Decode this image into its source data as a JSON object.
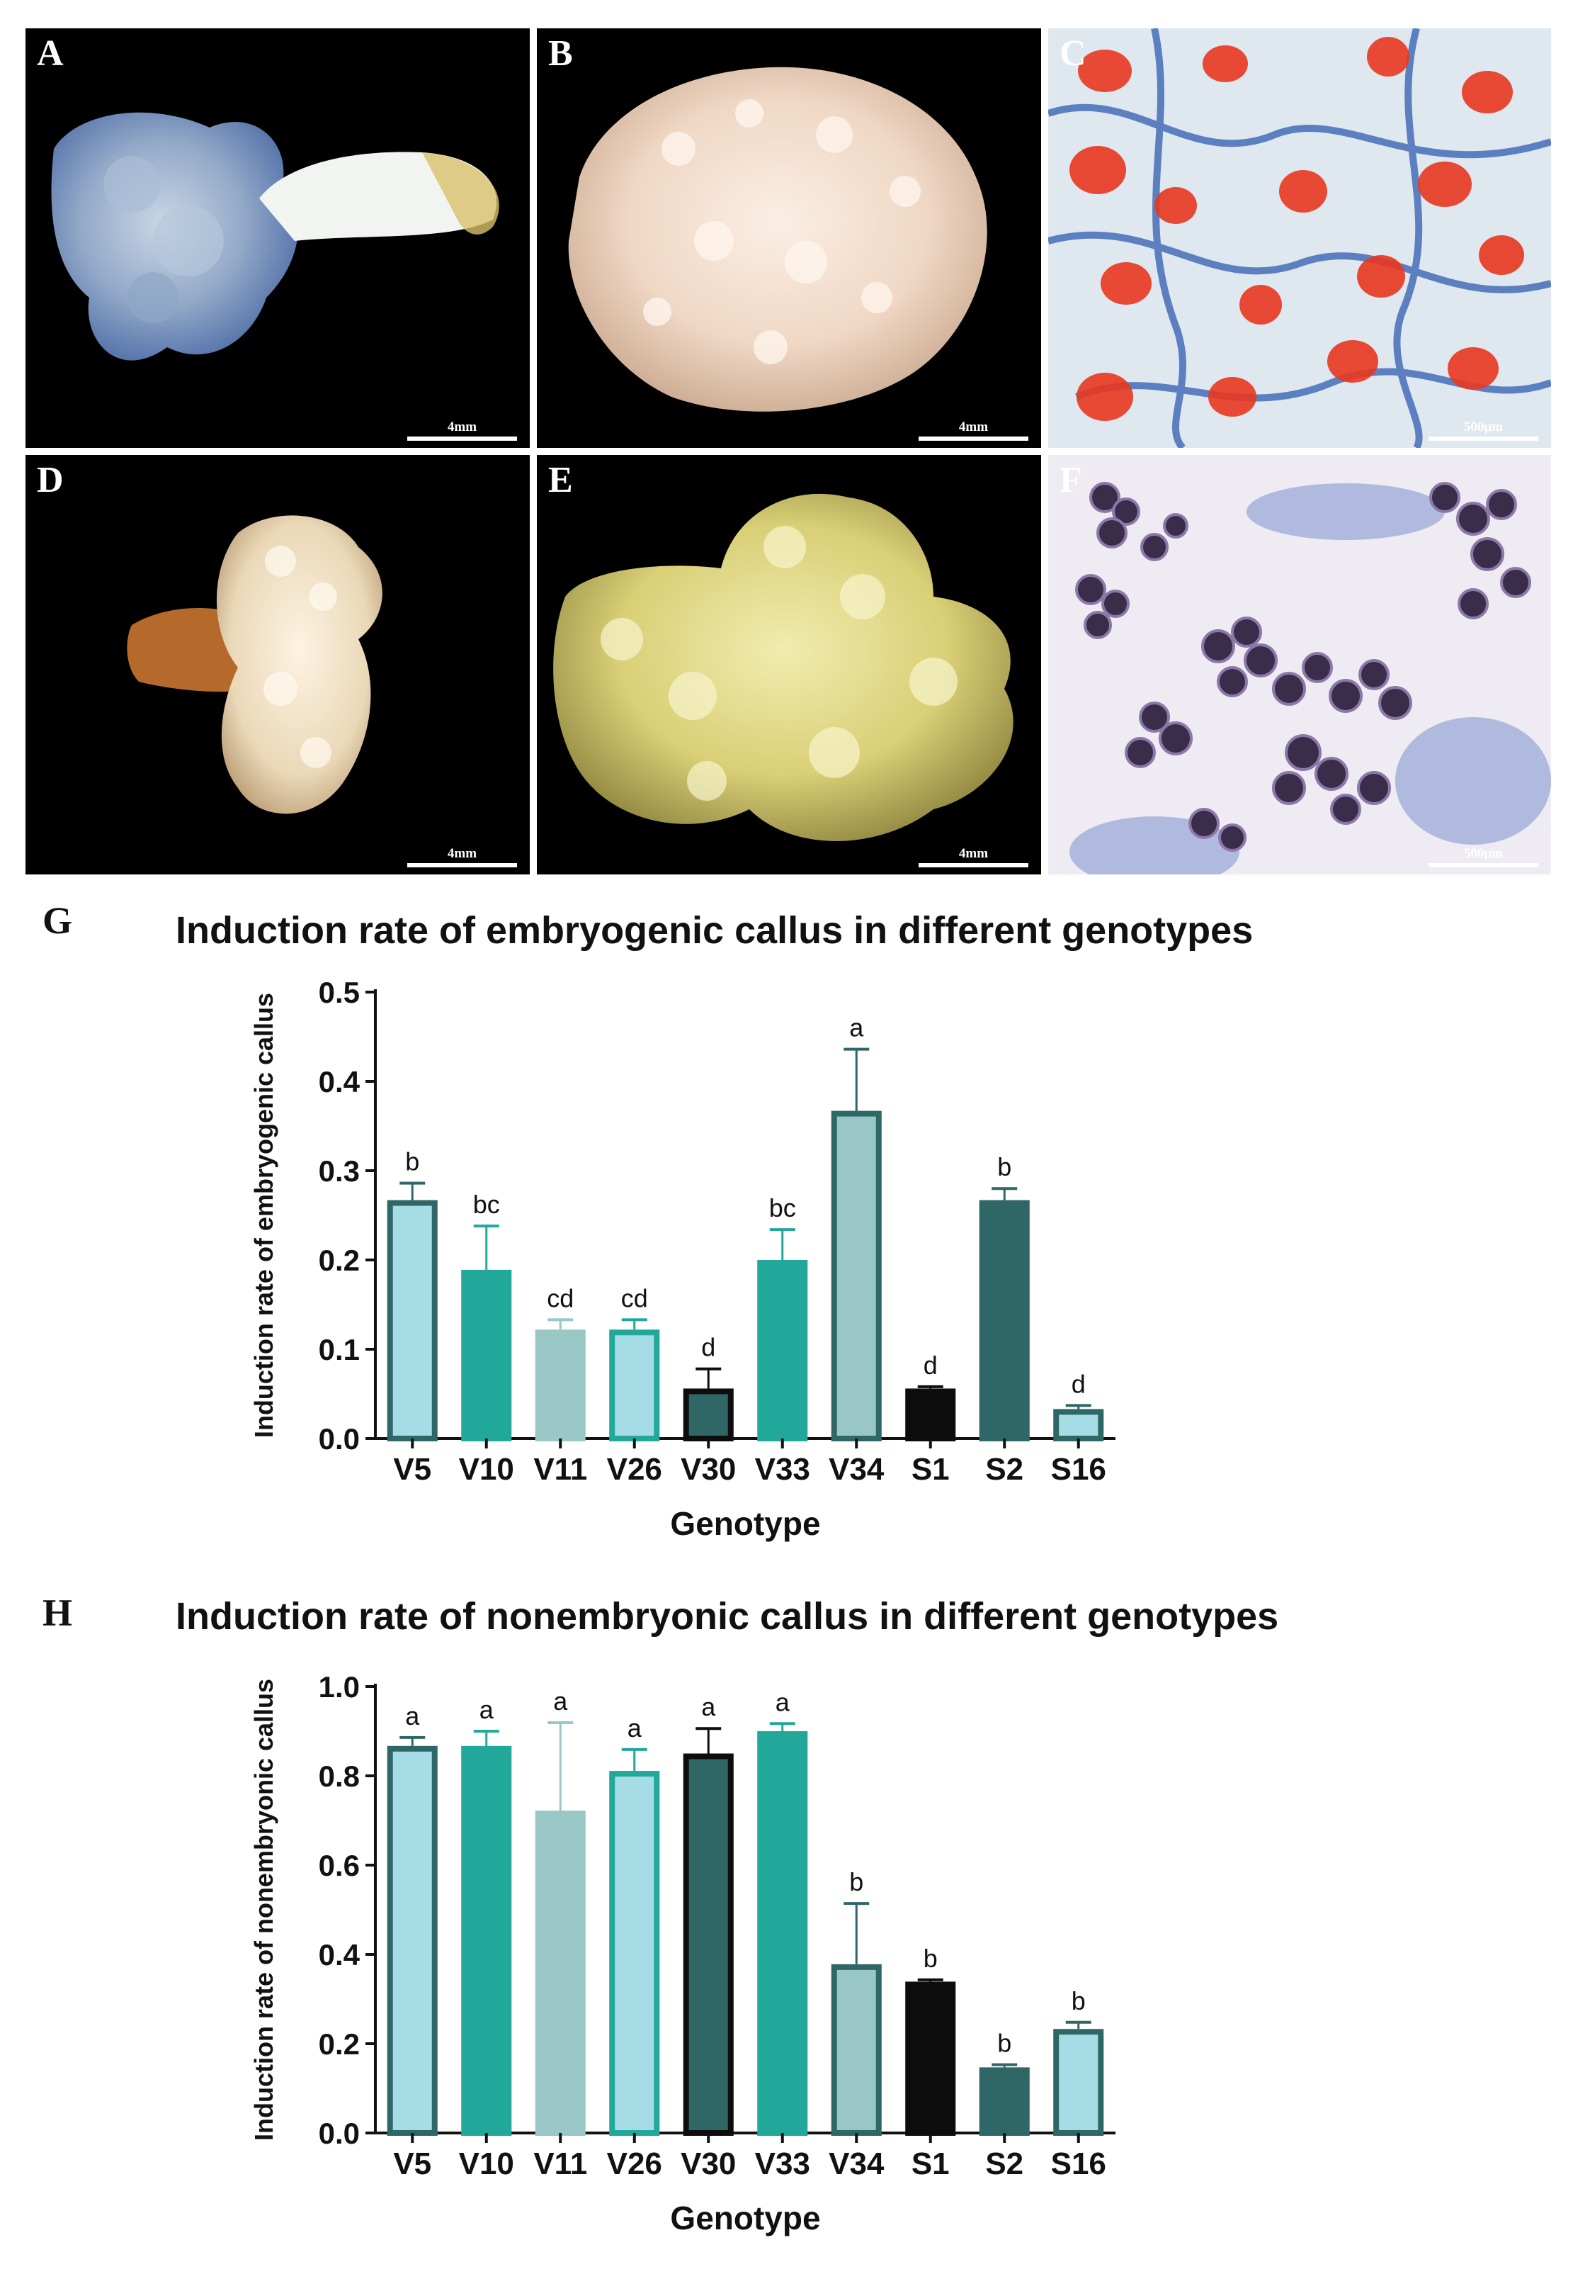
{
  "panels": [
    {
      "letter": "A",
      "scale": "4mm"
    },
    {
      "letter": "B",
      "scale": "4mm"
    },
    {
      "letter": "C",
      "scale": "500μm"
    },
    {
      "letter": "D",
      "scale": "4mm"
    },
    {
      "letter": "E",
      "scale": "4mm"
    },
    {
      "letter": "F",
      "scale": "500μm"
    }
  ],
  "colors": {
    "light_blue": "#A6DCE6",
    "teal": "#22A89A",
    "pale_teal": "#98C7C5",
    "dark_slate": "#2F6766",
    "black": "#0D0D0D",
    "outline_dark": "#2F6766"
  },
  "chart_data": [
    {
      "letter": "G",
      "type": "bar",
      "title": "Induction rate of embryogenic callus in different genotypes",
      "xlabel": "Genotype",
      "ylabel": "Induction rate of embryogenic callus",
      "ylim": [
        0,
        0.5
      ],
      "yticks": [
        "0.0",
        "0.1",
        "0.2",
        "0.3",
        "0.4",
        "0.5"
      ],
      "categories": [
        "V5",
        "V10",
        "V11",
        "V26",
        "V30",
        "V33",
        "V34",
        "S1",
        "S2",
        "S16"
      ],
      "values": [
        0.267,
        0.189,
        0.122,
        0.122,
        0.056,
        0.2,
        0.367,
        0.056,
        0.267,
        0.033
      ],
      "errors": [
        0.019,
        0.049,
        0.011,
        0.011,
        0.022,
        0.034,
        0.069,
        0.002,
        0.013,
        0.004
      ],
      "letters": [
        "b",
        "bc",
        "cd",
        "cd",
        "d",
        "bc",
        "a",
        "d",
        "b",
        "d"
      ]
    },
    {
      "letter": "H",
      "type": "bar",
      "title": "Induction rate of nonembryonic callus in different genotypes",
      "xlabel": "Genotype",
      "ylabel": "Induction rate of nonembryonic callus",
      "ylim": [
        0,
        1.0
      ],
      "yticks": [
        "0.0",
        "0.2",
        "0.4",
        "0.6",
        "0.8",
        "1.0"
      ],
      "categories": [
        "V5",
        "V10",
        "V11",
        "V26",
        "V30",
        "V33",
        "V34",
        "S1",
        "S2",
        "S16"
      ],
      "values": [
        0.867,
        0.867,
        0.722,
        0.811,
        0.85,
        0.9,
        0.378,
        0.339,
        0.147,
        0.233
      ],
      "errors": [
        0.019,
        0.033,
        0.197,
        0.048,
        0.056,
        0.017,
        0.136,
        0.004,
        0.006,
        0.015
      ],
      "letters": [
        "a",
        "a",
        "a",
        "a",
        "a",
        "a",
        "b",
        "b",
        "b",
        "b"
      ]
    }
  ],
  "bar_styles": [
    {
      "fill": "#A6DCE6",
      "stroke": "#2F6766"
    },
    {
      "fill": "#22A89A",
      "stroke": "#22A89A"
    },
    {
      "fill": "#98C7C5",
      "stroke": "#98C7C5"
    },
    {
      "fill": "#A6DCE6",
      "stroke": "#22A89A"
    },
    {
      "fill": "#2F6766",
      "stroke": "#0D0D0D"
    },
    {
      "fill": "#22A89A",
      "stroke": "#22A89A"
    },
    {
      "fill": "#98C7C5",
      "stroke": "#2F6766"
    },
    {
      "fill": "#0D0D0D",
      "stroke": "#0D0D0D"
    },
    {
      "fill": "#2F6766",
      "stroke": "#2F6766"
    },
    {
      "fill": "#A6DCE6",
      "stroke": "#2F6766"
    }
  ]
}
